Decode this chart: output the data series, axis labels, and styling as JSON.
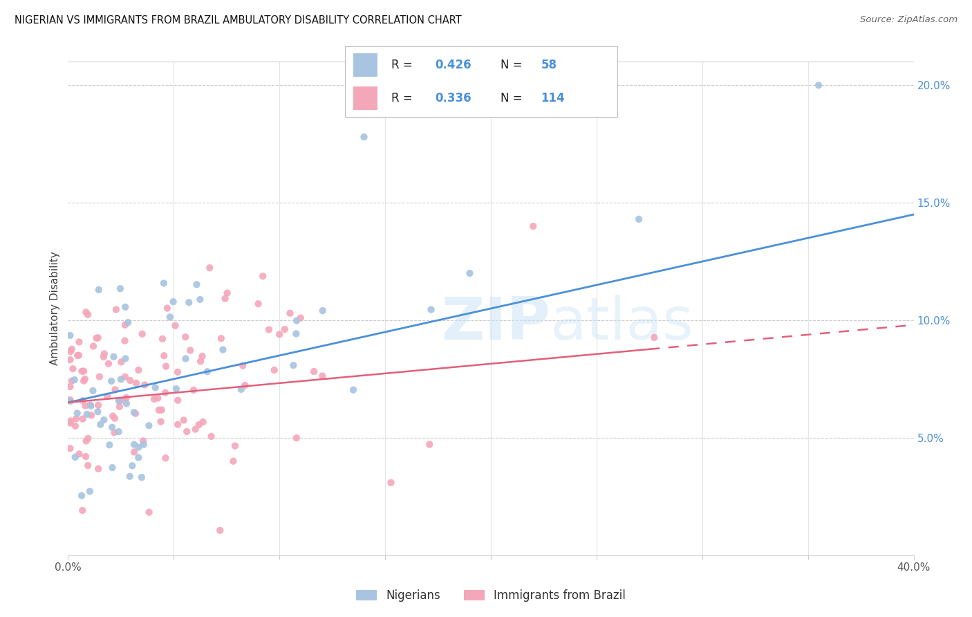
{
  "title": "NIGERIAN VS IMMIGRANTS FROM BRAZIL AMBULATORY DISABILITY CORRELATION CHART",
  "source": "Source: ZipAtlas.com",
  "ylabel": "Ambulatory Disability",
  "xmin": 0.0,
  "xmax": 0.4,
  "ymin": 0.0,
  "ymax": 0.21,
  "blue_color": "#4a90d9",
  "pink_color": "#e0607a",
  "scatter_blue_color": "#a8c4e0",
  "scatter_pink_color": "#f4a7b9",
  "text_dark": "#222222",
  "text_blue": "#4a90d9",
  "grid_color": "#cccccc",
  "nig_trend_start": 0.065,
  "nig_trend_end": 0.145,
  "bra_trend_start": 0.065,
  "bra_trend_end": 0.098,
  "bra_dash_split": 0.275
}
